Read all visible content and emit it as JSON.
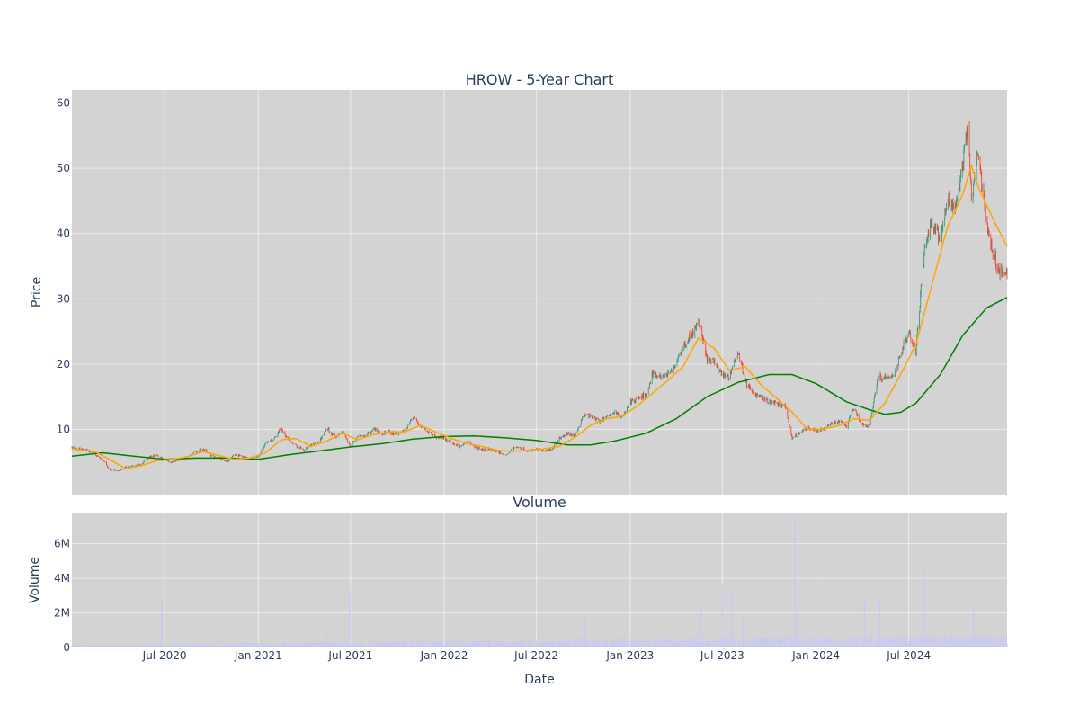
{
  "chart_data": [
    {
      "type": "candlestick",
      "title": "HROW - 5-Year Chart",
      "ylabel": "Price",
      "ylim": [
        0,
        62
      ],
      "yticks": [
        10,
        20,
        30,
        40,
        50,
        60
      ],
      "grid": true,
      "legend": "none",
      "colors": {
        "up": "#3d9970",
        "down": "#ff4136",
        "ma_short": "#ffa500",
        "ma_long": "#008000",
        "plot_bg": "#d3d3d3",
        "grid": "#ececec"
      },
      "close_series": [
        [
          "2020-01-01",
          7.2
        ],
        [
          "2020-01-15",
          7.0
        ],
        [
          "2020-02-01",
          6.8
        ],
        [
          "2020-02-15",
          6.2
        ],
        [
          "2020-03-01",
          5.4
        ],
        [
          "2020-03-15",
          3.8
        ],
        [
          "2020-04-01",
          3.6
        ],
        [
          "2020-04-15",
          4.2
        ],
        [
          "2020-05-01",
          4.4
        ],
        [
          "2020-05-15",
          4.6
        ],
        [
          "2020-06-01",
          5.8
        ],
        [
          "2020-06-15",
          6.0
        ],
        [
          "2020-07-01",
          5.4
        ],
        [
          "2020-07-15",
          5.0
        ],
        [
          "2020-08-01",
          5.4
        ],
        [
          "2020-08-15",
          5.8
        ],
        [
          "2020-09-01",
          6.6
        ],
        [
          "2020-09-15",
          7.0
        ],
        [
          "2020-10-01",
          6.0
        ],
        [
          "2020-10-15",
          5.6
        ],
        [
          "2020-11-01",
          5.0
        ],
        [
          "2020-11-15",
          6.2
        ],
        [
          "2020-12-01",
          5.8
        ],
        [
          "2020-12-15",
          5.4
        ],
        [
          "2021-01-01",
          5.8
        ],
        [
          "2021-01-15",
          7.8
        ],
        [
          "2021-02-01",
          8.6
        ],
        [
          "2021-02-15",
          10.2
        ],
        [
          "2021-03-01",
          8.4
        ],
        [
          "2021-03-15",
          7.6
        ],
        [
          "2021-04-01",
          6.8
        ],
        [
          "2021-04-15",
          7.6
        ],
        [
          "2021-05-01",
          8.2
        ],
        [
          "2021-05-15",
          10.2
        ],
        [
          "2021-06-01",
          8.8
        ],
        [
          "2021-06-15",
          9.6
        ],
        [
          "2021-07-01",
          7.4
        ],
        [
          "2021-07-15",
          8.8
        ],
        [
          "2021-08-01",
          9.0
        ],
        [
          "2021-08-15",
          10.0
        ],
        [
          "2021-09-01",
          9.4
        ],
        [
          "2021-09-15",
          9.6
        ],
        [
          "2021-10-01",
          9.2
        ],
        [
          "2021-10-15",
          9.8
        ],
        [
          "2021-11-01",
          11.8
        ],
        [
          "2021-11-15",
          10.6
        ],
        [
          "2021-12-01",
          9.6
        ],
        [
          "2021-12-15",
          8.8
        ],
        [
          "2022-01-01",
          8.6
        ],
        [
          "2022-01-15",
          8.0
        ],
        [
          "2022-02-01",
          7.4
        ],
        [
          "2022-02-15",
          8.2
        ],
        [
          "2022-03-01",
          7.4
        ],
        [
          "2022-03-15",
          6.8
        ],
        [
          "2022-04-01",
          7.0
        ],
        [
          "2022-04-15",
          6.6
        ],
        [
          "2022-05-01",
          6.0
        ],
        [
          "2022-05-15",
          7.0
        ],
        [
          "2022-06-01",
          7.2
        ],
        [
          "2022-06-15",
          6.6
        ],
        [
          "2022-07-01",
          7.0
        ],
        [
          "2022-07-15",
          6.8
        ],
        [
          "2022-08-01",
          7.0
        ],
        [
          "2022-08-15",
          8.6
        ],
        [
          "2022-09-01",
          9.4
        ],
        [
          "2022-09-15",
          9.0
        ],
        [
          "2022-10-01",
          12.0
        ],
        [
          "2022-10-15",
          12.2
        ],
        [
          "2022-11-01",
          11.2
        ],
        [
          "2022-11-15",
          11.8
        ],
        [
          "2022-12-01",
          12.6
        ],
        [
          "2022-12-15",
          11.8
        ],
        [
          "2023-01-01",
          14.0
        ],
        [
          "2023-01-15",
          14.6
        ],
        [
          "2023-02-01",
          15.2
        ],
        [
          "2023-02-15",
          18.4
        ],
        [
          "2023-03-01",
          17.8
        ],
        [
          "2023-03-15",
          18.4
        ],
        [
          "2023-04-01",
          19.6
        ],
        [
          "2023-04-15",
          22.4
        ],
        [
          "2023-05-01",
          24.6
        ],
        [
          "2023-05-15",
          26.8
        ],
        [
          "2023-06-01",
          21.0
        ],
        [
          "2023-06-15",
          20.4
        ],
        [
          "2023-07-01",
          18.2
        ],
        [
          "2023-07-15",
          18.0
        ],
        [
          "2023-08-01",
          21.8
        ],
        [
          "2023-08-15",
          17.4
        ],
        [
          "2023-09-01",
          15.6
        ],
        [
          "2023-09-15",
          14.8
        ],
        [
          "2023-10-01",
          14.2
        ],
        [
          "2023-10-15",
          14.0
        ],
        [
          "2023-11-01",
          13.6
        ],
        [
          "2023-11-15",
          8.6
        ],
        [
          "2023-12-01",
          9.6
        ],
        [
          "2023-12-15",
          10.2
        ],
        [
          "2024-01-01",
          9.8
        ],
        [
          "2024-01-15",
          10.0
        ],
        [
          "2024-02-01",
          11.0
        ],
        [
          "2024-02-15",
          11.2
        ],
        [
          "2024-03-01",
          10.6
        ],
        [
          "2024-03-15",
          13.2
        ],
        [
          "2024-04-01",
          10.6
        ],
        [
          "2024-04-15",
          10.6
        ],
        [
          "2024-05-01",
          17.6
        ],
        [
          "2024-05-15",
          18.0
        ],
        [
          "2024-06-01",
          18.2
        ],
        [
          "2024-06-15",
          21.4
        ],
        [
          "2024-07-01",
          25.0
        ],
        [
          "2024-07-15",
          22.0
        ],
        [
          "2024-08-01",
          38.0
        ],
        [
          "2024-08-15",
          42.0
        ],
        [
          "2024-09-01",
          39.0
        ],
        [
          "2024-09-15",
          45.0
        ],
        [
          "2024-10-01",
          44.0
        ],
        [
          "2024-10-15",
          51.0
        ],
        [
          "2024-10-25",
          57.0
        ],
        [
          "2024-11-01",
          46.0
        ],
        [
          "2024-11-15",
          52.0
        ],
        [
          "2024-12-01",
          42.0
        ],
        [
          "2024-12-15",
          36.0
        ],
        [
          "2025-01-01",
          34.0
        ],
        [
          "2025-01-10",
          33.8
        ]
      ],
      "ma_short": [
        [
          "2020-01-01",
          7.0
        ],
        [
          "2020-02-15",
          6.6
        ],
        [
          "2020-03-15",
          5.4
        ],
        [
          "2020-04-15",
          4.0
        ],
        [
          "2020-05-15",
          4.4
        ],
        [
          "2020-06-15",
          5.2
        ],
        [
          "2020-07-15",
          5.4
        ],
        [
          "2020-08-15",
          5.8
        ],
        [
          "2020-09-15",
          6.6
        ],
        [
          "2020-10-15",
          6.0
        ],
        [
          "2020-11-15",
          5.4
        ],
        [
          "2020-12-15",
          5.6
        ],
        [
          "2021-01-15",
          6.4
        ],
        [
          "2021-02-15",
          8.4
        ],
        [
          "2021-03-15",
          8.6
        ],
        [
          "2021-04-15",
          7.4
        ],
        [
          "2021-05-15",
          8.2
        ],
        [
          "2021-06-15",
          9.4
        ],
        [
          "2021-07-15",
          8.4
        ],
        [
          "2021-08-15",
          9.2
        ],
        [
          "2021-09-15",
          9.6
        ],
        [
          "2021-10-15",
          9.6
        ],
        [
          "2021-11-15",
          10.6
        ],
        [
          "2021-12-15",
          9.6
        ],
        [
          "2022-01-15",
          8.6
        ],
        [
          "2022-02-15",
          7.8
        ],
        [
          "2022-03-15",
          7.4
        ],
        [
          "2022-04-15",
          6.8
        ],
        [
          "2022-05-15",
          6.6
        ],
        [
          "2022-06-15",
          6.8
        ],
        [
          "2022-07-15",
          7.0
        ],
        [
          "2022-08-15",
          7.4
        ],
        [
          "2022-09-15",
          8.8
        ],
        [
          "2022-10-15",
          10.6
        ],
        [
          "2022-11-15",
          11.6
        ],
        [
          "2022-12-15",
          12.0
        ],
        [
          "2023-01-15",
          13.6
        ],
        [
          "2023-02-15",
          15.6
        ],
        [
          "2023-03-15",
          17.4
        ],
        [
          "2023-04-15",
          19.6
        ],
        [
          "2023-05-15",
          24.0
        ],
        [
          "2023-06-15",
          22.4
        ],
        [
          "2023-07-15",
          19.0
        ],
        [
          "2023-08-15",
          19.6
        ],
        [
          "2023-09-15",
          16.8
        ],
        [
          "2023-10-15",
          14.8
        ],
        [
          "2023-11-15",
          12.6
        ],
        [
          "2023-12-15",
          10.0
        ],
        [
          "2024-01-15",
          10.0
        ],
        [
          "2024-02-15",
          10.6
        ],
        [
          "2024-03-15",
          11.6
        ],
        [
          "2024-04-15",
          11.4
        ],
        [
          "2024-05-15",
          14.0
        ],
        [
          "2024-06-15",
          18.4
        ],
        [
          "2024-07-15",
          23.0
        ],
        [
          "2024-08-15",
          32.0
        ],
        [
          "2024-09-15",
          41.0
        ],
        [
          "2024-10-15",
          46.0
        ],
        [
          "2024-11-01",
          50.4
        ],
        [
          "2024-11-15",
          47.0
        ],
        [
          "2024-12-15",
          42.0
        ],
        [
          "2025-01-10",
          38.0
        ]
      ],
      "ma_long": [
        [
          "2020-01-01",
          5.9
        ],
        [
          "2020-03-01",
          6.4
        ],
        [
          "2020-05-01",
          5.9
        ],
        [
          "2020-07-01",
          5.4
        ],
        [
          "2020-09-01",
          5.6
        ],
        [
          "2020-11-01",
          5.6
        ],
        [
          "2021-01-01",
          5.4
        ],
        [
          "2021-03-01",
          6.1
        ],
        [
          "2021-05-01",
          6.7
        ],
        [
          "2021-07-01",
          7.3
        ],
        [
          "2021-09-01",
          7.8
        ],
        [
          "2021-11-01",
          8.5
        ],
        [
          "2022-01-01",
          8.9
        ],
        [
          "2022-03-01",
          9.0
        ],
        [
          "2022-05-01",
          8.7
        ],
        [
          "2022-07-01",
          8.3
        ],
        [
          "2022-09-01",
          7.6
        ],
        [
          "2022-10-15",
          7.6
        ],
        [
          "2022-12-01",
          8.2
        ],
        [
          "2023-02-01",
          9.4
        ],
        [
          "2023-04-01",
          11.6
        ],
        [
          "2023-06-01",
          15.0
        ],
        [
          "2023-08-01",
          17.2
        ],
        [
          "2023-10-01",
          18.4
        ],
        [
          "2023-11-15",
          18.4
        ],
        [
          "2024-01-01",
          17.0
        ],
        [
          "2024-03-01",
          14.2
        ],
        [
          "2024-04-15",
          13.0
        ],
        [
          "2024-05-15",
          12.3
        ],
        [
          "2024-06-15",
          12.6
        ],
        [
          "2024-07-15",
          14.0
        ],
        [
          "2024-09-01",
          18.4
        ],
        [
          "2024-10-15",
          24.4
        ],
        [
          "2024-12-01",
          28.6
        ],
        [
          "2025-01-10",
          30.2
        ]
      ]
    },
    {
      "type": "bar",
      "title": "Volume",
      "xlabel": "Date",
      "ylabel": "Volume",
      "ylim": [
        0,
        7800000
      ],
      "yticks": [
        0,
        2000000,
        4000000,
        6000000
      ],
      "ytick_labels": [
        "0",
        "2M",
        "4M",
        "6M"
      ],
      "xticks": [
        "2020-07-01",
        "2021-01-01",
        "2021-07-01",
        "2022-01-01",
        "2022-07-01",
        "2023-01-01",
        "2023-07-01",
        "2024-01-01",
        "2024-07-01"
      ],
      "xtick_labels": [
        "Jul 2020",
        "Jan 2021",
        "Jul 2021",
        "Jan 2022",
        "Jul 2022",
        "Jan 2023",
        "Jul 2023",
        "Jan 2024",
        "Jul 2024"
      ],
      "xlim": [
        "2020-01-01",
        "2025-01-10"
      ],
      "colors": {
        "bar": "#c8c8f5"
      },
      "spikes": [
        [
          "2020-06-25",
          2500000
        ],
        [
          "2021-06-30",
          3300000
        ],
        [
          "2021-05-15",
          1000000
        ],
        [
          "2022-10-05",
          1800000
        ],
        [
          "2023-05-20",
          2500000
        ],
        [
          "2023-07-01",
          3700000
        ],
        [
          "2023-07-20",
          3300000
        ],
        [
          "2023-08-10",
          1800000
        ],
        [
          "2023-11-20",
          7500000
        ],
        [
          "2023-11-25",
          2000000
        ],
        [
          "2024-04-05",
          2800000
        ],
        [
          "2024-05-05",
          2600000
        ],
        [
          "2024-08-01",
          4700000
        ],
        [
          "2024-11-05",
          2400000
        ],
        [
          "2024-08-20",
          1100000
        ],
        [
          "2024-09-20",
          1200000
        ]
      ]
    }
  ]
}
